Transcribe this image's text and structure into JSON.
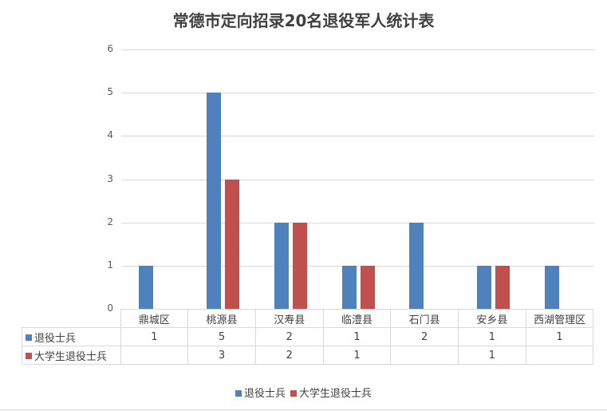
{
  "title": "常德市定向招录20名退役军人统计表",
  "chart_data": {
    "type": "bar",
    "title": "常德市定向招录20名退役军人统计表",
    "xlabel": "",
    "ylabel": "",
    "ylim": [
      0,
      6
    ],
    "yticks": [
      0,
      1,
      2,
      3,
      4,
      5,
      6
    ],
    "grid": true,
    "legend_position": "bottom",
    "data_table": true,
    "categories": [
      "鼎城区",
      "桃源县",
      "汉寿县",
      "临澧县",
      "石门县",
      "安乡县",
      "西湖管理区"
    ],
    "series": [
      {
        "name": "退役士兵",
        "color": "#4f81bd",
        "values": [
          1,
          5,
          2,
          1,
          2,
          1,
          1
        ]
      },
      {
        "name": "大学生退役士兵",
        "color": "#c0504d",
        "values": [
          null,
          3,
          2,
          1,
          null,
          1,
          null
        ]
      }
    ]
  },
  "table": {
    "rows": [
      {
        "label": "退役士兵",
        "cells": [
          "1",
          "5",
          "2",
          "1",
          "2",
          "1",
          "1"
        ]
      },
      {
        "label": "大学生退役士兵",
        "cells": [
          "",
          "3",
          "2",
          "1",
          "",
          "1",
          ""
        ]
      }
    ]
  },
  "legend": [
    {
      "label": "退役士兵",
      "color": "#4f81bd"
    },
    {
      "label": "大学生退役士兵",
      "color": "#c0504d"
    }
  ]
}
